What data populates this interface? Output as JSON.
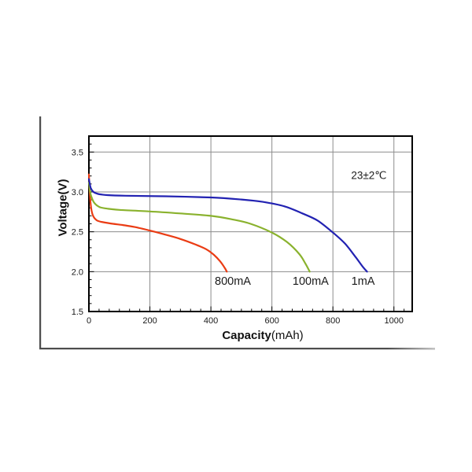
{
  "chart_data": {
    "type": "line",
    "title": "",
    "xlabel": "Capacity(mAh)",
    "ylabel": "Voltage(V)",
    "xlabel_bold": "Capacity",
    "xlabel_unit": "(mAh)",
    "ylabel_bold": "Voltage",
    "ylabel_unit": "(V)",
    "annotation": {
      "text": "23±2℃",
      "x": 918,
      "y": 3.21
    },
    "xlim": [
      0,
      1060
    ],
    "ylim": [
      1.5,
      3.7
    ],
    "grid": true,
    "grid_color": "#8c8c8c",
    "axis_color": "#000000",
    "text_color": "#1a1a1a",
    "x_minor_divisions": 6,
    "y_minor_divisions": 5,
    "xticks": [
      {
        "value": 0,
        "label": "0"
      },
      {
        "value": 200,
        "label": "200"
      },
      {
        "value": 400,
        "label": "400"
      },
      {
        "value": 600,
        "label": "600"
      },
      {
        "value": 800,
        "label": "800"
      },
      {
        "value": 1000,
        "label": "1000"
      }
    ],
    "yticks": [
      {
        "value": 1.5,
        "label": "1.5"
      },
      {
        "value": 2.0,
        "label": "2.0"
      },
      {
        "value": 2.5,
        "label": "2.5"
      },
      {
        "value": 3.0,
        "label": "3.0"
      },
      {
        "value": 3.5,
        "label": "3.5"
      }
    ],
    "series": [
      {
        "name": "800mA",
        "color": "#ea3c14",
        "label": {
          "text": "800mA",
          "x": 472,
          "y": 1.885
        },
        "points": [
          [
            0,
            3.22
          ],
          [
            2,
            3.05
          ],
          [
            5,
            2.88
          ],
          [
            9,
            2.76
          ],
          [
            15,
            2.69
          ],
          [
            25,
            2.645
          ],
          [
            40,
            2.625
          ],
          [
            70,
            2.605
          ],
          [
            110,
            2.585
          ],
          [
            150,
            2.56
          ],
          [
            200,
            2.515
          ],
          [
            250,
            2.465
          ],
          [
            300,
            2.41
          ],
          [
            350,
            2.34
          ],
          [
            385,
            2.28
          ],
          [
            410,
            2.21
          ],
          [
            430,
            2.13
          ],
          [
            445,
            2.05
          ],
          [
            452,
            2.0
          ]
        ]
      },
      {
        "name": "100mA",
        "color": "#8ab22e",
        "label": {
          "text": "100mA",
          "x": 727,
          "y": 1.885
        },
        "points": [
          [
            0,
            3.12
          ],
          [
            4,
            3.0
          ],
          [
            9,
            2.93
          ],
          [
            18,
            2.86
          ],
          [
            35,
            2.81
          ],
          [
            60,
            2.79
          ],
          [
            100,
            2.775
          ],
          [
            200,
            2.755
          ],
          [
            300,
            2.73
          ],
          [
            400,
            2.7
          ],
          [
            470,
            2.655
          ],
          [
            530,
            2.6
          ],
          [
            600,
            2.49
          ],
          [
            650,
            2.37
          ],
          [
            690,
            2.22
          ],
          [
            710,
            2.1
          ],
          [
            724,
            2.0
          ]
        ]
      },
      {
        "name": "1mA",
        "color": "#2222b2",
        "label": {
          "text": "1mA",
          "x": 899,
          "y": 1.885
        },
        "points": [
          [
            0,
            3.16
          ],
          [
            6,
            3.05
          ],
          [
            15,
            3.0
          ],
          [
            30,
            2.975
          ],
          [
            60,
            2.96
          ],
          [
            120,
            2.952
          ],
          [
            250,
            2.945
          ],
          [
            400,
            2.93
          ],
          [
            500,
            2.905
          ],
          [
            570,
            2.875
          ],
          [
            640,
            2.82
          ],
          [
            700,
            2.73
          ],
          [
            750,
            2.64
          ],
          [
            800,
            2.49
          ],
          [
            840,
            2.35
          ],
          [
            875,
            2.18
          ],
          [
            898,
            2.06
          ],
          [
            912,
            2.0
          ]
        ]
      }
    ]
  }
}
